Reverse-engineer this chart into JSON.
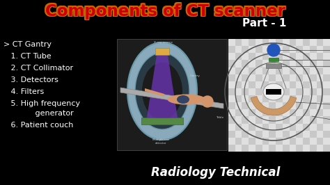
{
  "bg_color": "#000000",
  "title": "Components of CT scanner",
  "title_color_main": "#CC0000",
  "title_color_outline": "#CC6600",
  "part_text": "Part - 1",
  "part_color": "#FFFFFF",
  "bullet_header": "> CT Gantry",
  "bullet_color": "#FFFFFF",
  "bottom_text": "Radiology Technical",
  "bottom_color": "#FFFFFF",
  "figsize": [
    4.74,
    2.66
  ],
  "dpi": 100
}
